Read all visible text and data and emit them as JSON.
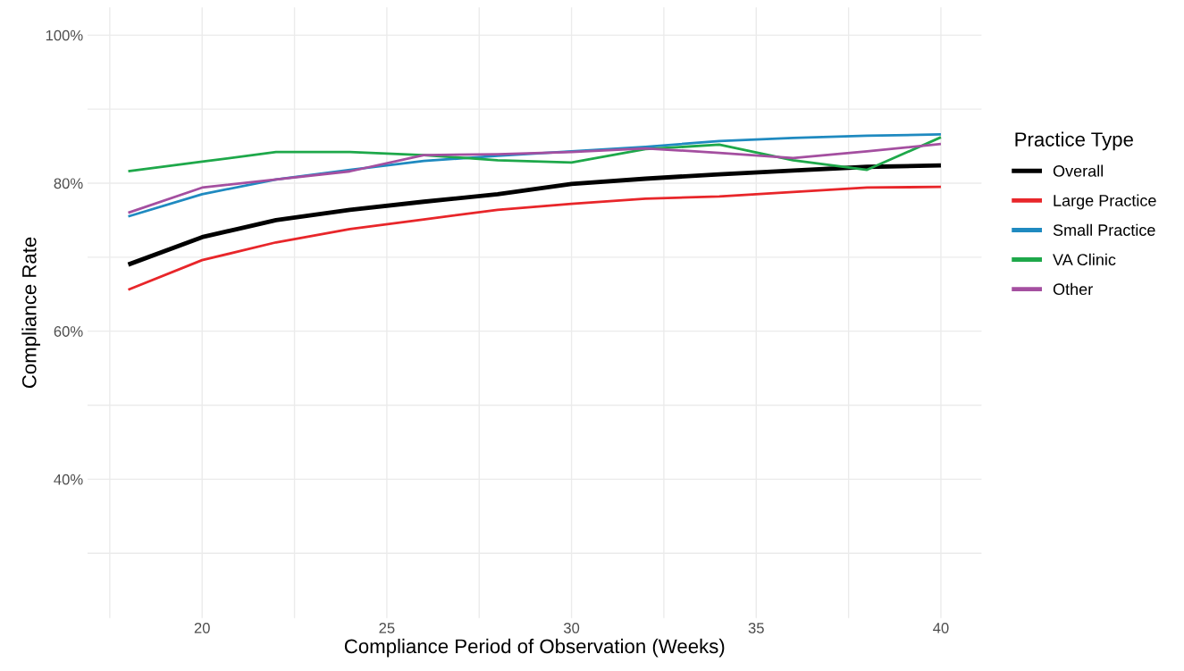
{
  "chart_data": {
    "type": "line",
    "xlabel": "Compliance Period of Observation (Weeks)",
    "ylabel": "Compliance Rate",
    "legend_title": "Practice Type",
    "x": [
      18,
      20,
      22,
      24,
      26,
      28,
      30,
      32,
      34,
      36,
      38,
      40
    ],
    "series": [
      {
        "name": "Overall",
        "color": "#000000",
        "values": [
          69.0,
          72.7,
          75.0,
          76.4,
          77.5,
          78.5,
          79.9,
          80.6,
          81.2,
          81.7,
          82.2,
          82.4
        ]
      },
      {
        "name": "Large Practice",
        "color": "#e8262a",
        "values": [
          65.6,
          69.6,
          72.0,
          73.8,
          75.1,
          76.4,
          77.2,
          77.9,
          78.2,
          78.8,
          79.4,
          79.5
        ]
      },
      {
        "name": "Small Practice",
        "color": "#1f8ac0",
        "values": [
          75.5,
          78.5,
          80.5,
          81.8,
          83.0,
          83.7,
          84.3,
          84.9,
          85.7,
          86.1,
          86.4,
          86.6
        ]
      },
      {
        "name": "VA Clinic",
        "color": "#1ea84a",
        "values": [
          81.6,
          82.9,
          84.2,
          84.2,
          83.8,
          83.1,
          82.8,
          84.6,
          85.2,
          83.1,
          81.8,
          86.2
        ]
      },
      {
        "name": "Other",
        "color": "#a44fa0",
        "values": [
          76.0,
          79.4,
          80.5,
          81.6,
          83.8,
          83.9,
          84.2,
          84.7,
          84.1,
          83.4,
          84.3,
          85.3
        ]
      }
    ],
    "xlim": [
      16.9,
      41.1
    ],
    "ylim": [
      21.25,
      103.75
    ],
    "xticks": [
      {
        "value": 17.5,
        "label": null
      },
      20,
      {
        "value": 22.5,
        "label": null
      },
      25,
      {
        "value": 27.5,
        "label": null
      },
      30,
      {
        "value": 32.5,
        "label": null
      },
      35,
      {
        "value": 37.5,
        "label": null
      },
      40
    ],
    "yticks": [
      {
        "value": 30,
        "label": null
      },
      {
        "value": 40,
        "label": "40%"
      },
      {
        "value": 50,
        "label": null
      },
      {
        "value": 60,
        "label": "60%"
      },
      {
        "value": 70,
        "label": null
      },
      {
        "value": 80,
        "label": "80%"
      },
      {
        "value": 90,
        "label": null
      },
      {
        "value": 100,
        "label": "100%"
      }
    ],
    "grid": true,
    "legend": "right",
    "marker": "none",
    "line_style": "solid"
  }
}
